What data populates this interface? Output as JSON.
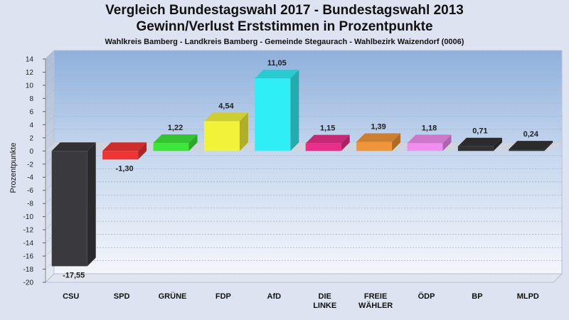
{
  "chart_data": {
    "type": "bar",
    "title": "Vergleich Bundestagswahl 2017 - Bundestagswahl 2013",
    "title2": "Gewinn/Verlust Erststimmen in Prozentpunkte",
    "subtitle": "Wahlkreis Bamberg - Landkreis Bamberg - Gemeinde Stegaurach - Wahlbezirk Waizendorf (0006)",
    "ylabel": "Prozentpunkte",
    "ylim": [
      -20,
      14
    ],
    "yticks": [
      "14",
      "12",
      "10",
      "8",
      "6",
      "4",
      "2",
      "0",
      "-2",
      "-4",
      "-6",
      "-8",
      "-10",
      "-12",
      "-14",
      "-16",
      "-18",
      "-20"
    ],
    "grid": true,
    "categories": [
      {
        "label": [
          "CSU"
        ],
        "value": -17.55,
        "text": "-17,55",
        "color": "#3a3a3e"
      },
      {
        "label": [
          "SPD"
        ],
        "value": -1.3,
        "text": "-1,30",
        "color": "#f03434"
      },
      {
        "label": [
          "GRÜNE"
        ],
        "value": 1.22,
        "text": "1,22",
        "color": "#3ee63a"
      },
      {
        "label": [
          "FDP"
        ],
        "value": 4.54,
        "text": "4,54",
        "color": "#f2f23a"
      },
      {
        "label": [
          "AfD"
        ],
        "value": 11.05,
        "text": "11,05",
        "color": "#30eef5"
      },
      {
        "label": [
          "DIE",
          "LINKE"
        ],
        "value": 1.15,
        "text": "1,15",
        "color": "#e8308a"
      },
      {
        "label": [
          "FREIE",
          "WÄHLER"
        ],
        "value": 1.39,
        "text": "1,39",
        "color": "#f0953a"
      },
      {
        "label": [
          "ÖDP"
        ],
        "value": 1.18,
        "text": "1,18",
        "color": "#f08ef0"
      },
      {
        "label": [
          "BP"
        ],
        "value": 0.71,
        "text": "0,71",
        "color": "#323236"
      },
      {
        "label": [
          "MLPD"
        ],
        "value": 0.24,
        "text": "0,24",
        "color": "#323236"
      }
    ]
  }
}
